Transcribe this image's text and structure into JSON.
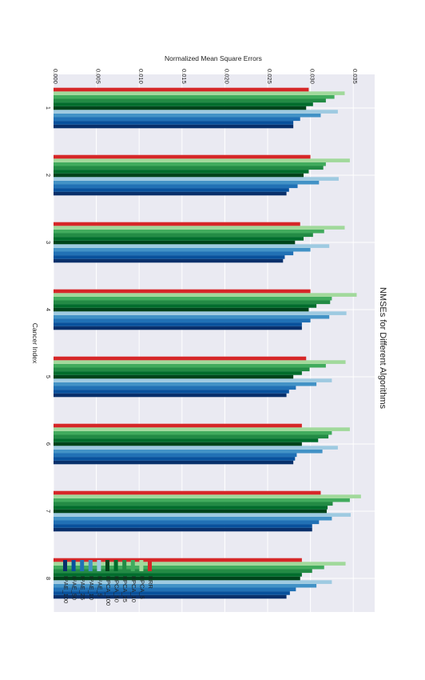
{
  "chart_data": {
    "type": "bar",
    "orientation": "horizontal",
    "rotated": "page rotated 90 degrees clockwise",
    "title": "NMSEs for Different Algorithms",
    "xlabel": "Cancer Index",
    "ylabel": "Normalized Mean Square Errors",
    "categories": [
      "1",
      "2",
      "3",
      "4",
      "5",
      "6",
      "7",
      "8"
    ],
    "ylim": [
      0.0,
      0.0375
    ],
    "yticks": [
      "0.000",
      "0.005",
      "0.010",
      "0.015",
      "0.020",
      "0.025",
      "0.030",
      "0.035"
    ],
    "grid": true,
    "legend_position": "bottom-left",
    "background_color": "#EAEAF2",
    "series": [
      {
        "name": "K²AE_100",
        "color": "#08306B",
        "values": [
          0.028,
          0.0272,
          0.0268,
          0.029,
          0.0272,
          0.028,
          0.0302,
          0.0272
        ]
      },
      {
        "name": "K²AE_50",
        "color": "#08519C",
        "values": [
          0.028,
          0.0275,
          0.027,
          0.029,
          0.0275,
          0.0282,
          0.0302,
          0.0276
        ]
      },
      {
        "name": "K²AE_25",
        "color": "#2171B5",
        "values": [
          0.0288,
          0.0285,
          0.028,
          0.03,
          0.0283,
          0.0284,
          0.031,
          0.0283
        ]
      },
      {
        "name": "K²AE_10",
        "color": "#4292C6",
        "values": [
          0.0312,
          0.031,
          0.03,
          0.0322,
          0.0307,
          0.0314,
          0.0325,
          0.0307
        ]
      },
      {
        "name": "K²AE_5",
        "color": "#9ECAE1",
        "values": [
          0.0332,
          0.0333,
          0.0322,
          0.0342,
          0.0325,
          0.0332,
          0.0347,
          0.0325
        ]
      },
      {
        "name": "KPCA_100",
        "color": "#00441B",
        "values": [
          0.0295,
          0.0292,
          0.0282,
          0.0298,
          0.028,
          0.029,
          0.0319,
          0.0288
        ]
      },
      {
        "name": "KPCA_50",
        "color": "#006D2C",
        "values": [
          0.0303,
          0.0298,
          0.0292,
          0.0307,
          0.029,
          0.0309,
          0.032,
          0.029
        ]
      },
      {
        "name": "KPCA_25",
        "color": "#238B45",
        "values": [
          0.0318,
          0.0315,
          0.0303,
          0.0323,
          0.0299,
          0.0321,
          0.0326,
          0.0302
        ]
      },
      {
        "name": "KPCA_10",
        "color": "#41AB5D",
        "values": [
          0.0328,
          0.0318,
          0.0316,
          0.0325,
          0.0318,
          0.0325,
          0.0346,
          0.0316
        ]
      },
      {
        "name": "KPCA_5",
        "color": "#A1D99B",
        "values": [
          0.034,
          0.0346,
          0.034,
          0.0354,
          0.0341,
          0.0346,
          0.0359,
          0.0341
        ]
      },
      {
        "name": "KRR",
        "color": "#D62728",
        "values": [
          0.0298,
          0.03,
          0.0288,
          0.03,
          0.0295,
          0.029,
          0.0312,
          0.029
        ]
      }
    ]
  }
}
